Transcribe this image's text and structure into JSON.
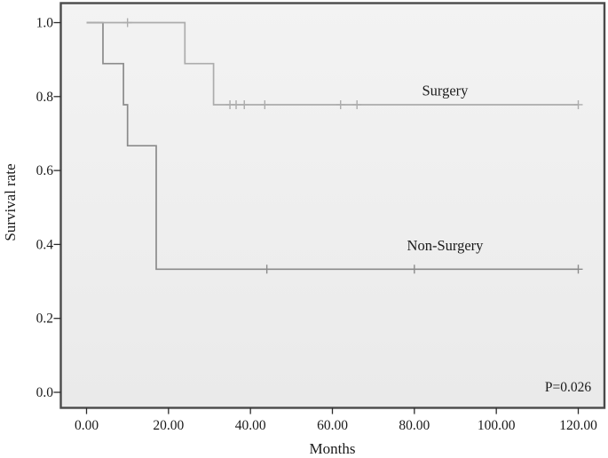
{
  "figure": {
    "background": "#ffffff",
    "plot_bg_top": "#f3f3f3",
    "plot_bg_bottom": "#eaeaea",
    "border_color": "#4a4a4a",
    "tick_color": "#2b2b2b",
    "text_color": "#1a1a1a"
  },
  "chart_data": {
    "type": "line",
    "subtype": "kaplan_meier_step_survival",
    "title": "",
    "xlabel": "Months",
    "ylabel": "Survival rate",
    "xlim": [
      0,
      120
    ],
    "ylim": [
      0.0,
      1.0
    ],
    "grid": false,
    "legend_position": "inline-labels",
    "x_ticks": {
      "values": [
        0,
        20,
        40,
        60,
        80,
        100,
        120
      ],
      "labels": [
        "0.00",
        "20.00",
        "40.00",
        "60.00",
        "80.00",
        "100.00",
        "120.00"
      ]
    },
    "y_ticks": {
      "values": [
        0.0,
        0.2,
        0.4,
        0.6,
        0.8,
        1.0
      ],
      "labels": [
        "0.0",
        "0.2",
        "0.4",
        "0.6",
        "0.8",
        "1.0"
      ]
    },
    "series": [
      {
        "name": "Non-Surgery",
        "color": "#8b8b8b",
        "label": {
          "text": "Non-Surgery",
          "x": 87.5,
          "y": 0.396
        },
        "steps": [
          [
            0,
            1.0
          ],
          [
            4,
            0.889
          ],
          [
            9,
            0.778
          ],
          [
            10,
            0.667
          ],
          [
            17,
            0.333
          ],
          [
            120,
            0.333
          ]
        ],
        "censored": [
          [
            44,
            0.333
          ],
          [
            80,
            0.333
          ],
          [
            120,
            0.333
          ]
        ]
      },
      {
        "name": "Surgery",
        "color": "#acacac",
        "label": {
          "text": "Surgery",
          "x": 87.5,
          "y": 0.815
        },
        "steps": [
          [
            0,
            1.0
          ],
          [
            24,
            0.889
          ],
          [
            31,
            0.778
          ],
          [
            120,
            0.778
          ]
        ],
        "censored": [
          [
            10,
            1.0
          ],
          [
            35,
            0.778
          ],
          [
            36.5,
            0.778
          ],
          [
            38.5,
            0.778
          ],
          [
            43.5,
            0.778
          ],
          [
            62,
            0.778
          ],
          [
            66,
            0.778
          ],
          [
            120,
            0.778
          ]
        ]
      }
    ],
    "annotations": [
      {
        "name": "p-value",
        "text": "P=0.026",
        "x": 117.5,
        "y": 0.003
      }
    ]
  }
}
